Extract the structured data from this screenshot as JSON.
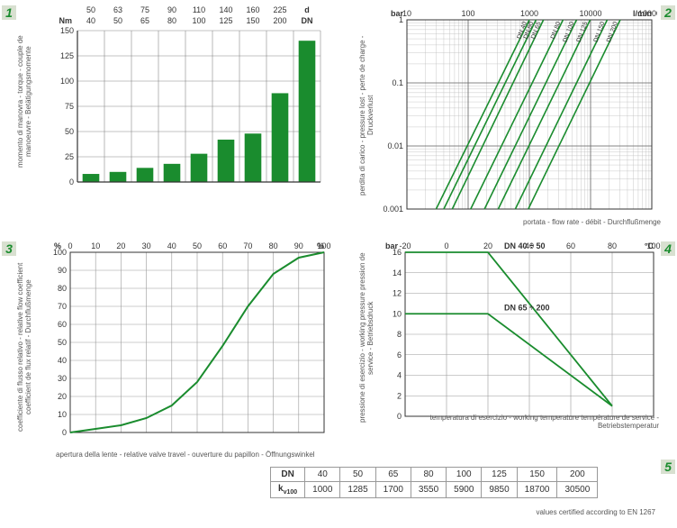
{
  "panel1": {
    "badge": "1",
    "ylabel": "momento di manovra - torque - couple de manoeuvre - Betätigungsmomente",
    "yunit": "Nm",
    "top_row1": [
      "50",
      "63",
      "75",
      "90",
      "110",
      "140",
      "160",
      "225",
      "d"
    ],
    "top_row2": [
      "40",
      "50",
      "65",
      "80",
      "100",
      "125",
      "150",
      "200",
      "DN"
    ],
    "yticks": [
      0,
      25,
      50,
      75,
      100,
      125,
      150
    ],
    "bars": [
      8,
      10,
      14,
      18,
      28,
      42,
      48,
      88,
      140
    ],
    "bar_color": "#1a8c2e",
    "grid_color": "#888",
    "bg": "#ffffff"
  },
  "panel2": {
    "badge": "2",
    "ylabel": "perdita di carico - pressure lost - perte de charge - Druckverlust",
    "yunit": "bar",
    "xlabel": "portata - flow rate - débit - Durchflußmenge",
    "xunit": "l/min",
    "xticks": [
      10,
      100,
      1000,
      10000,
      100000
    ],
    "yticks": [
      0.001,
      0.01,
      0.1,
      1
    ],
    "line_color": "#1a8c2e",
    "series": [
      {
        "label": "DN 40",
        "x0": 30,
        "x1": 1000
      },
      {
        "label": "DN 50",
        "x0": 40,
        "x1": 1285
      },
      {
        "label": "DN 65",
        "x0": 55,
        "x1": 1700
      },
      {
        "label": "DN 80",
        "x0": 110,
        "x1": 3550
      },
      {
        "label": "DN 100",
        "x0": 185,
        "x1": 5900
      },
      {
        "label": "DN 125",
        "x0": 310,
        "x1": 9850
      },
      {
        "label": "DN 150",
        "x0": 590,
        "x1": 18700
      },
      {
        "label": "DN 200",
        "x0": 960,
        "x1": 30500
      }
    ]
  },
  "panel3": {
    "badge": "3",
    "ylabel": "coefficiente di flusso relativo - relative flow coefficient coefficient de flux relatif - Durchflußmenge",
    "yunit": "%",
    "xlabel": "apertura della lente - relative valve travel - ouverture du papillon - Öffnungswinkel",
    "xunit": "%",
    "xticks": [
      0,
      10,
      20,
      30,
      40,
      50,
      60,
      70,
      80,
      90,
      100
    ],
    "yticks": [
      0,
      10,
      20,
      30,
      40,
      50,
      60,
      70,
      80,
      90,
      100
    ],
    "line_color": "#1a8c2e",
    "curve": [
      [
        0,
        0
      ],
      [
        10,
        2
      ],
      [
        20,
        4
      ],
      [
        30,
        8
      ],
      [
        40,
        15
      ],
      [
        50,
        28
      ],
      [
        60,
        48
      ],
      [
        70,
        70
      ],
      [
        80,
        88
      ],
      [
        90,
        97
      ],
      [
        100,
        100
      ]
    ]
  },
  "panel4": {
    "badge": "4",
    "ylabel": "pressione di esercizio - working pressure pression de service - Betriebsdruck",
    "yunit": "bar",
    "xlabel": "temperatura di esercizio - working temperature température de service - Betriebstemperatur",
    "xunit": "°C",
    "xticks": [
      -20,
      0,
      20,
      40,
      60,
      80,
      100
    ],
    "yticks": [
      0,
      2,
      4,
      6,
      8,
      10,
      12,
      14,
      16
    ],
    "line_color": "#1a8c2e",
    "series": [
      {
        "label": "DN 40 ÷ 50",
        "pts": [
          [
            -20,
            16
          ],
          [
            20,
            16
          ],
          [
            80,
            1
          ]
        ]
      },
      {
        "label": "DN 65 ÷ 200",
        "pts": [
          [
            -20,
            10
          ],
          [
            20,
            10
          ],
          [
            80,
            1
          ]
        ]
      }
    ]
  },
  "panel5": {
    "badge": "5",
    "row_head1": "DN",
    "row_head2": "k",
    "row_head2_sub": "v100",
    "cols": [
      "40",
      "50",
      "65",
      "80",
      "100",
      "125",
      "150",
      "200"
    ],
    "vals": [
      "1000",
      "1285",
      "1700",
      "3550",
      "5900",
      "9850",
      "18700",
      "30500"
    ],
    "footer": "values certified according to EN 1267"
  }
}
